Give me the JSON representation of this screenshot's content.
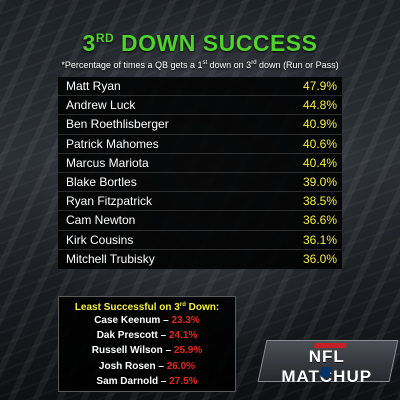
{
  "header": {
    "title_main": "3",
    "title_sup": "RD",
    "title_rest": " DOWN SUCCESS",
    "subtitle_a": "*Percentage of times a QB gets a 1",
    "subtitle_sup1": "st",
    "subtitle_b": " down on 3",
    "subtitle_sup2": "rd",
    "subtitle_c": " down (Run or Pass)"
  },
  "leaders": [
    {
      "name": "Matt Ryan",
      "pct": "47.9%"
    },
    {
      "name": "Andrew Luck",
      "pct": "44.8%"
    },
    {
      "name": "Ben Roethlisberger",
      "pct": "40.9%"
    },
    {
      "name": "Patrick Mahomes",
      "pct": "40.6%"
    },
    {
      "name": "Marcus Mariota",
      "pct": "40.4%"
    },
    {
      "name": "Blake Bortles",
      "pct": "39.0%"
    },
    {
      "name": "Ryan Fitzpatrick",
      "pct": "38.5%"
    },
    {
      "name": "Cam Newton",
      "pct": "36.6%"
    },
    {
      "name": "Kirk Cousins",
      "pct": "36.1%"
    },
    {
      "name": "Mitchell Trubisky",
      "pct": "36.0%"
    }
  ],
  "least": {
    "title_a": "Least Successful on 3",
    "title_sup": "rd",
    "title_b": " Down:",
    "items": [
      {
        "name": "Case Keenum",
        "dash": " – ",
        "pct": "23.3%"
      },
      {
        "name": "Dak Prescott",
        "dash": " – ",
        "pct": "24.1%"
      },
      {
        "name": "Russell Wilson",
        "dash": " – ",
        "pct": "25.9%"
      },
      {
        "name": "Josh Rosen",
        "dash": " – ",
        "pct": "26.0%"
      },
      {
        "name": "Sam Darnold",
        "dash": " – ",
        "pct": "27.5%"
      }
    ]
  },
  "logo": {
    "text": "NFL MATCHUP",
    "icon": "nfl-shield-icon"
  },
  "colors": {
    "title_green": "#4fd22c",
    "pct_yellow": "#f5ee3c",
    "least_red": "#e8251a"
  }
}
